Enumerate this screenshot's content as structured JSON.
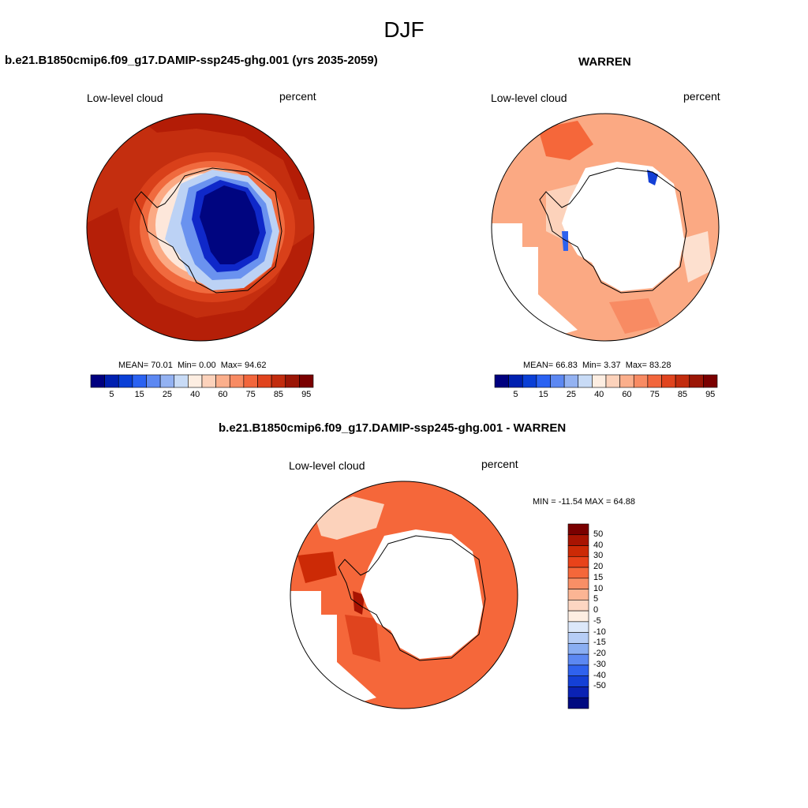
{
  "page_title": "DJF",
  "panels": [
    {
      "id": "model",
      "title": "b.e21.B1850cmip6.f09_g17.DAMIP-ssp245-ghg.001 (yrs 2035-2059)",
      "left_label": "Low-level cloud",
      "right_label": "percent",
      "stats": {
        "mean_label": "MEAN=",
        "mean": "70.01",
        "min_label": "Min=",
        "min": "0.00",
        "max_label": "Max=",
        "max": "94.62"
      }
    },
    {
      "id": "obs",
      "title": "WARREN",
      "left_label": "Low-level cloud",
      "right_label": "percent",
      "stats": {
        "mean_label": "MEAN=",
        "mean": "66.83",
        "min_label": "Min=",
        "min": "3.37",
        "max_label": "Max=",
        "max": "83.28"
      }
    },
    {
      "id": "diff",
      "title": "b.e21.B1850cmip6.f09_g17.DAMIP-ssp245-ghg.001 - WARREN",
      "left_label": "Low-level cloud",
      "right_label": "percent",
      "minmax": "MIN = -11.54 MAX =  64.88"
    }
  ],
  "colorbar_abs": {
    "colors": [
      "#00007f",
      "#0020b0",
      "#0a3fd6",
      "#2a62f2",
      "#5c88f2",
      "#93b2f2",
      "#c8dbf6",
      "#fdeee2",
      "#fcd2bb",
      "#fbaf8c",
      "#f88b63",
      "#f2663c",
      "#e0441e",
      "#c22c0e",
      "#9b1606",
      "#7a0000"
    ],
    "labels": [
      "5",
      "15",
      "25",
      "40",
      "60",
      "75",
      "85",
      "95"
    ]
  },
  "colorbar_diff": {
    "colors": [
      "#7a0000",
      "#a81402",
      "#cc2a06",
      "#e8431a",
      "#f5673a",
      "#f88f66",
      "#fbb594",
      "#fdd6c2",
      "#fdeee2",
      "#dce8fa",
      "#b6cdf6",
      "#8aaef2",
      "#5c88f2",
      "#2f62ee",
      "#1440d6",
      "#0a22b4",
      "#000a80"
    ],
    "labels": [
      "50",
      "40",
      "30",
      "20",
      "15",
      "10",
      "5",
      "0",
      "-5",
      "-10",
      "-15",
      "-20",
      "-30",
      "-40",
      "-50"
    ]
  }
}
